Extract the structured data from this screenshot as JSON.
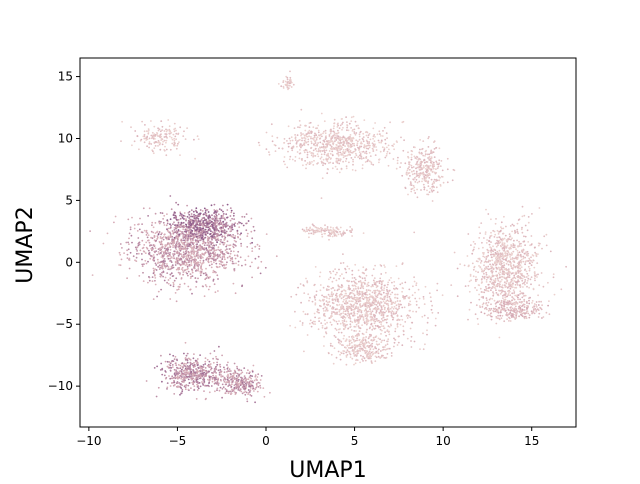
{
  "chart_data": {
    "type": "scatter",
    "title": "",
    "xlabel": "UMAP1",
    "ylabel": "UMAP2",
    "xlim": [
      -10.5,
      17.5
    ],
    "ylim": [
      -13.3,
      16.5
    ],
    "xticks": [
      -10,
      -5,
      0,
      5,
      10,
      15
    ],
    "yticks": [
      -10,
      -5,
      0,
      5,
      10,
      15
    ],
    "grid": false,
    "legend": "none",
    "colors": {
      "low": "#ecd2cf",
      "mid": "#d6aab5",
      "high": "#8c5a8a",
      "axis": "#000000"
    },
    "clusters": [
      {
        "name": "left-large",
        "cx": -4.5,
        "cy": 1.0,
        "sx": 2.6,
        "sy": 2.2,
        "n": 1300,
        "intensity": 0.55
      },
      {
        "name": "left-top-dark",
        "cx": -3.5,
        "cy": 3.0,
        "sx": 1.6,
        "sy": 1.1,
        "n": 500,
        "intensity": 0.8
      },
      {
        "name": "bottom-left",
        "cx": -4.0,
        "cy": -9.0,
        "sx": 1.6,
        "sy": 1.1,
        "n": 520,
        "intensity": 0.65
      },
      {
        "name": "bottom-left-tail",
        "cx": -1.5,
        "cy": -9.8,
        "sx": 1.0,
        "sy": 0.9,
        "n": 260,
        "intensity": 0.6
      },
      {
        "name": "top-left-strand",
        "cx": -6.0,
        "cy": 10.0,
        "sx": 1.3,
        "sy": 0.9,
        "n": 160,
        "intensity": 0.15
      },
      {
        "name": "top-center",
        "cx": 4.0,
        "cy": 9.5,
        "sx": 2.5,
        "sy": 1.5,
        "n": 700,
        "intensity": 0.12
      },
      {
        "name": "top-right-arm",
        "cx": 9.0,
        "cy": 7.5,
        "sx": 1.0,
        "sy": 1.6,
        "n": 300,
        "intensity": 0.15
      },
      {
        "name": "top-small",
        "cx": 1.2,
        "cy": 14.5,
        "sx": 0.3,
        "sy": 0.4,
        "n": 40,
        "intensity": 0.1
      },
      {
        "name": "center",
        "cx": 5.5,
        "cy": -3.5,
        "sx": 2.5,
        "sy": 2.3,
        "n": 1100,
        "intensity": 0.15
      },
      {
        "name": "center-bottom",
        "cx": 5.5,
        "cy": -7.0,
        "sx": 1.2,
        "sy": 0.9,
        "n": 250,
        "intensity": 0.12
      },
      {
        "name": "right",
        "cx": 13.5,
        "cy": -0.5,
        "sx": 1.6,
        "sy": 2.8,
        "n": 900,
        "intensity": 0.15
      },
      {
        "name": "right-lower-dark",
        "cx": 14.0,
        "cy": -3.8,
        "sx": 1.4,
        "sy": 0.8,
        "n": 250,
        "intensity": 0.3
      },
      {
        "name": "mid-strip",
        "cx": 3.5,
        "cy": 2.5,
        "sx": 1.3,
        "sy": 0.4,
        "n": 120,
        "intensity": 0.12
      }
    ]
  }
}
